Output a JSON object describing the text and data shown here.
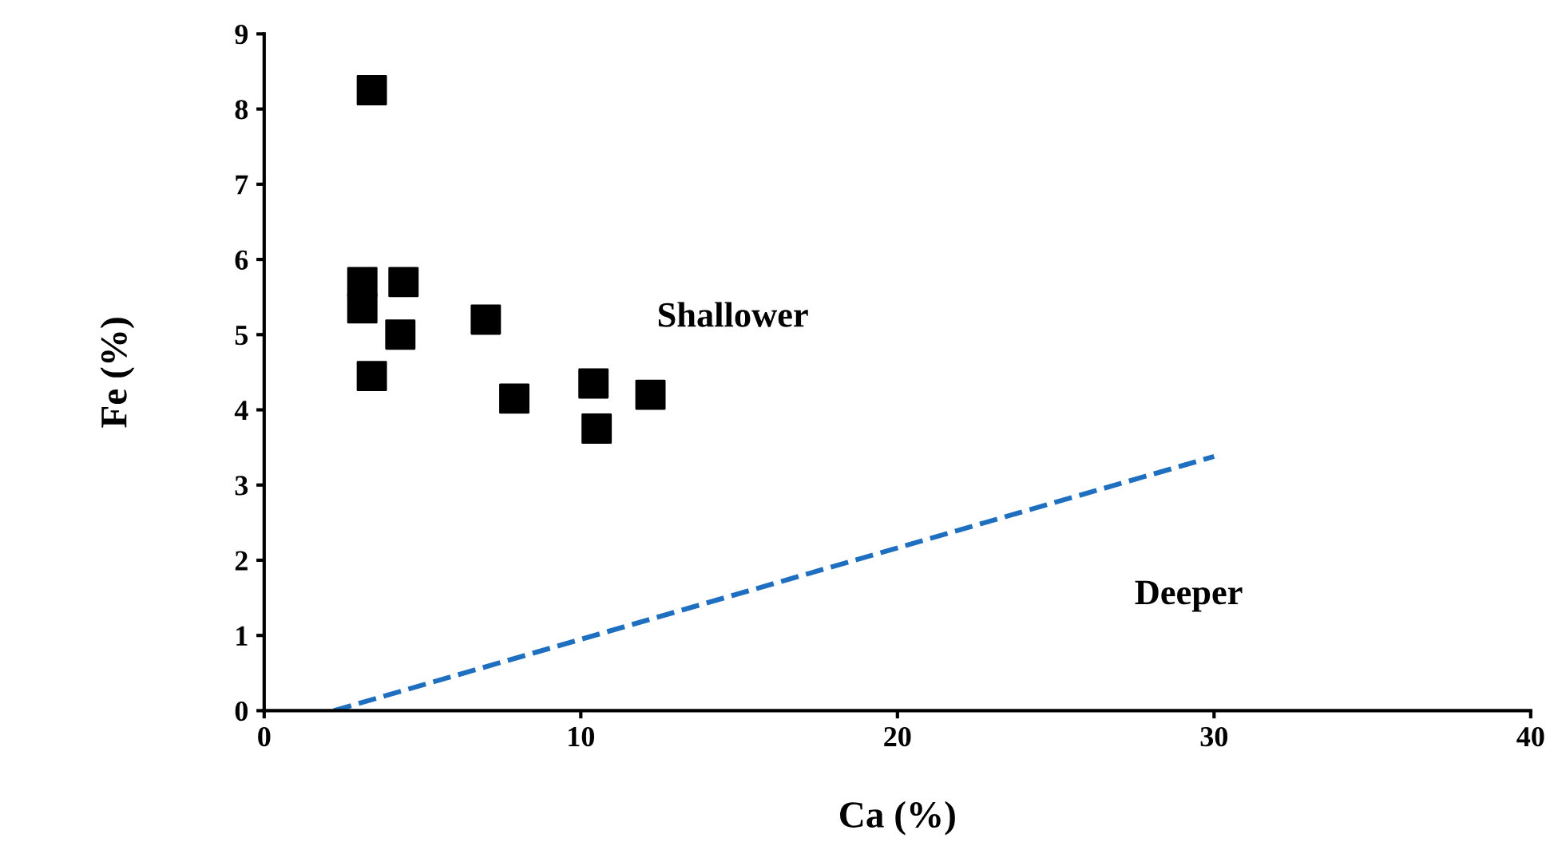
{
  "chart_data": {
    "type": "scatter",
    "xlabel": "Ca (%)",
    "ylabel": "Fe (%)",
    "xlim": [
      0,
      40
    ],
    "ylim": [
      0,
      9
    ],
    "xticks": [
      0,
      10,
      20,
      30,
      40
    ],
    "yticks": [
      0,
      1,
      2,
      3,
      4,
      5,
      6,
      7,
      8,
      9
    ],
    "marker": "square",
    "grid": false,
    "legend": false,
    "series": [
      {
        "color": "#000000",
        "x": [
          3.4,
          3.1,
          3.1,
          4.4,
          4.3,
          3.4,
          7.0,
          7.9,
          10.4,
          10.5,
          12.2
        ],
        "values": [
          8.25,
          5.7,
          5.35,
          5.7,
          5.0,
          4.45,
          5.2,
          4.15,
          4.35,
          3.75,
          4.2
        ]
      },
      {
        "type": "line",
        "color": "#1f6fc0",
        "line_style": "dashed",
        "marker": "none",
        "x": [
          2.2,
          30
        ],
        "values": [
          0,
          3.38
        ]
      }
    ],
    "annotations": [
      "Shallower",
      "Deeper"
    ]
  }
}
